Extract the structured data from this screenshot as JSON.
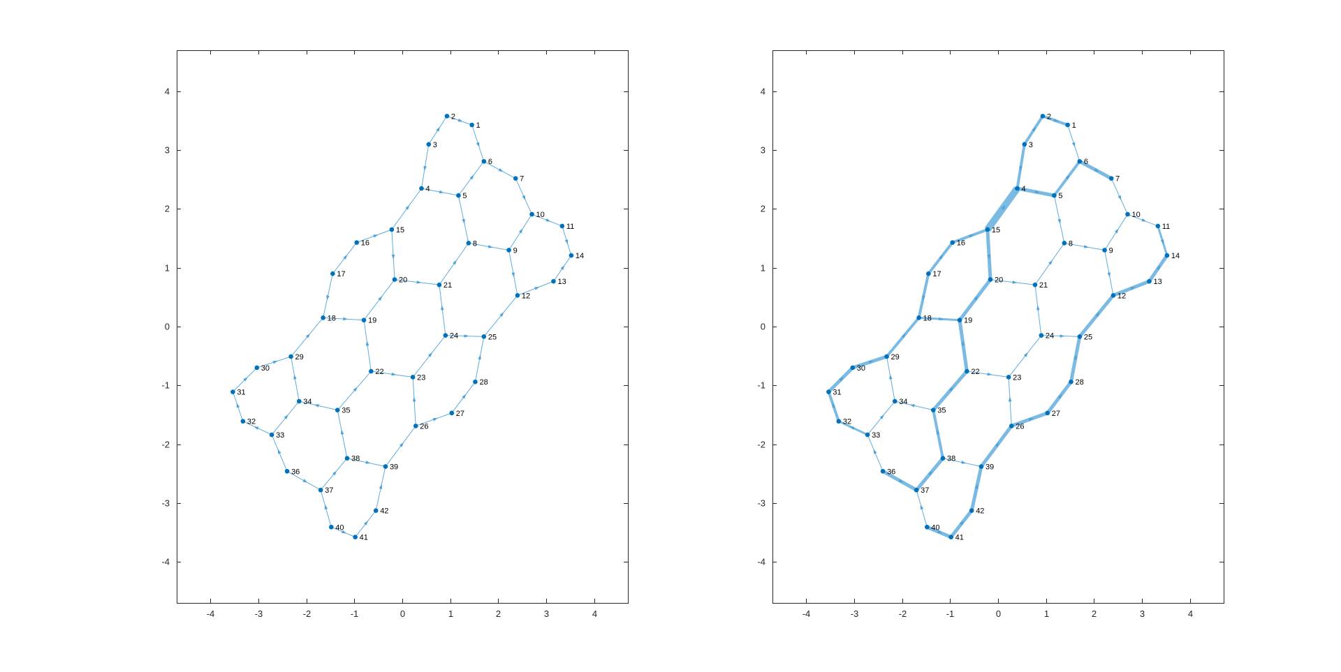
{
  "chart_data": [
    {
      "type": "graph",
      "title": "",
      "xlabel": "",
      "ylabel": "",
      "xlim": [
        -4.7,
        4.7
      ],
      "ylim": [
        -4.7,
        4.7
      ],
      "xticks": [
        -4,
        -3,
        -2,
        -1,
        0,
        1,
        2,
        3,
        4
      ],
      "yticks": [
        -4,
        -3,
        -2,
        -1,
        0,
        1,
        2,
        3,
        4
      ],
      "grid": false,
      "colors": {
        "node": "#0072BD",
        "edge": "#4DA3D9",
        "axis": "#262626"
      },
      "nodes": [
        {
          "id": 1,
          "x": 1.45,
          "y": 3.43
        },
        {
          "id": 2,
          "x": 0.93,
          "y": 3.58
        },
        {
          "id": 3,
          "x": 0.55,
          "y": 3.1
        },
        {
          "id": 4,
          "x": 0.4,
          "y": 2.35
        },
        {
          "id": 5,
          "x": 1.17,
          "y": 2.23
        },
        {
          "id": 6,
          "x": 1.7,
          "y": 2.81
        },
        {
          "id": 7,
          "x": 2.36,
          "y": 2.52
        },
        {
          "id": 8,
          "x": 1.38,
          "y": 1.42
        },
        {
          "id": 9,
          "x": 2.22,
          "y": 1.3
        },
        {
          "id": 10,
          "x": 2.7,
          "y": 1.91
        },
        {
          "id": 11,
          "x": 3.33,
          "y": 1.71
        },
        {
          "id": 12,
          "x": 2.4,
          "y": 0.53
        },
        {
          "id": 13,
          "x": 3.15,
          "y": 0.77
        },
        {
          "id": 14,
          "x": 3.52,
          "y": 1.21
        },
        {
          "id": 15,
          "x": -0.22,
          "y": 1.65
        },
        {
          "id": 16,
          "x": -0.95,
          "y": 1.43
        },
        {
          "id": 17,
          "x": -1.45,
          "y": 0.9
        },
        {
          "id": 18,
          "x": -1.65,
          "y": 0.15
        },
        {
          "id": 19,
          "x": -0.8,
          "y": 0.11
        },
        {
          "id": 20,
          "x": -0.16,
          "y": 0.8
        },
        {
          "id": 21,
          "x": 0.77,
          "y": 0.71
        },
        {
          "id": 22,
          "x": -0.65,
          "y": -0.76
        },
        {
          "id": 23,
          "x": 0.22,
          "y": -0.86
        },
        {
          "id": 24,
          "x": 0.9,
          "y": -0.15
        },
        {
          "id": 25,
          "x": 1.7,
          "y": -0.17
        },
        {
          "id": 26,
          "x": 0.28,
          "y": -1.69
        },
        {
          "id": 27,
          "x": 1.03,
          "y": -1.47
        },
        {
          "id": 28,
          "x": 1.52,
          "y": -0.94
        },
        {
          "id": 29,
          "x": -2.32,
          "y": -0.51
        },
        {
          "id": 30,
          "x": -3.03,
          "y": -0.7
        },
        {
          "id": 31,
          "x": -3.53,
          "y": -1.11
        },
        {
          "id": 32,
          "x": -3.32,
          "y": -1.61
        },
        {
          "id": 33,
          "x": -2.72,
          "y": -1.84
        },
        {
          "id": 34,
          "x": -2.15,
          "y": -1.27
        },
        {
          "id": 35,
          "x": -1.35,
          "y": -1.42
        },
        {
          "id": 36,
          "x": -2.4,
          "y": -2.46
        },
        {
          "id": 37,
          "x": -1.7,
          "y": -2.78
        },
        {
          "id": 38,
          "x": -1.15,
          "y": -2.24
        },
        {
          "id": 39,
          "x": -0.35,
          "y": -2.38
        },
        {
          "id": 40,
          "x": -1.48,
          "y": -3.41
        },
        {
          "id": 41,
          "x": -0.98,
          "y": -3.58
        },
        {
          "id": 42,
          "x": -0.55,
          "y": -3.13
        }
      ],
      "edges": [
        {
          "s": 2,
          "t": 1,
          "w": 1
        },
        {
          "s": 1,
          "t": 6,
          "w": 1
        },
        {
          "s": 3,
          "t": 2,
          "w": 1
        },
        {
          "s": 3,
          "t": 4,
          "w": 1
        },
        {
          "s": 4,
          "t": 5,
          "w": 1
        },
        {
          "s": 5,
          "t": 6,
          "w": 1
        },
        {
          "s": 6,
          "t": 7,
          "w": 1
        },
        {
          "s": 7,
          "t": 10,
          "w": 1
        },
        {
          "s": 5,
          "t": 8,
          "w": 1
        },
        {
          "s": 8,
          "t": 9,
          "w": 1
        },
        {
          "s": 9,
          "t": 10,
          "w": 1
        },
        {
          "s": 10,
          "t": 11,
          "w": 1
        },
        {
          "s": 11,
          "t": 14,
          "w": 1
        },
        {
          "s": 13,
          "t": 14,
          "w": 1
        },
        {
          "s": 12,
          "t": 13,
          "w": 1
        },
        {
          "s": 9,
          "t": 12,
          "w": 1
        },
        {
          "s": 15,
          "t": 4,
          "w": 1
        },
        {
          "s": 16,
          "t": 15,
          "w": 1
        },
        {
          "s": 17,
          "t": 16,
          "w": 1
        },
        {
          "s": 17,
          "t": 18,
          "w": 1
        },
        {
          "s": 18,
          "t": 19,
          "w": 1
        },
        {
          "s": 19,
          "t": 20,
          "w": 1
        },
        {
          "s": 15,
          "t": 20,
          "w": 1
        },
        {
          "s": 20,
          "t": 21,
          "w": 1
        },
        {
          "s": 21,
          "t": 8,
          "w": 1
        },
        {
          "s": 24,
          "t": 21,
          "w": 1
        },
        {
          "s": 24,
          "t": 25,
          "w": 1
        },
        {
          "s": 25,
          "t": 12,
          "w": 1
        },
        {
          "s": 23,
          "t": 24,
          "w": 1
        },
        {
          "s": 22,
          "t": 23,
          "w": 1
        },
        {
          "s": 22,
          "t": 19,
          "w": 1
        },
        {
          "s": 29,
          "t": 18,
          "w": 1
        },
        {
          "s": 30,
          "t": 29,
          "w": 1
        },
        {
          "s": 31,
          "t": 30,
          "w": 1
        },
        {
          "s": 32,
          "t": 31,
          "w": 1
        },
        {
          "s": 33,
          "t": 32,
          "w": 1
        },
        {
          "s": 33,
          "t": 34,
          "w": 1
        },
        {
          "s": 34,
          "t": 29,
          "w": 1
        },
        {
          "s": 35,
          "t": 34,
          "w": 1
        },
        {
          "s": 35,
          "t": 22,
          "w": 1
        },
        {
          "s": 26,
          "t": 23,
          "w": 1
        },
        {
          "s": 26,
          "t": 27,
          "w": 1
        },
        {
          "s": 27,
          "t": 28,
          "w": 1
        },
        {
          "s": 28,
          "t": 25,
          "w": 1
        },
        {
          "s": 39,
          "t": 26,
          "w": 1
        },
        {
          "s": 38,
          "t": 39,
          "w": 1
        },
        {
          "s": 38,
          "t": 35,
          "w": 1
        },
        {
          "s": 37,
          "t": 38,
          "w": 1
        },
        {
          "s": 36,
          "t": 37,
          "w": 1
        },
        {
          "s": 36,
          "t": 33,
          "w": 1
        },
        {
          "s": 40,
          "t": 37,
          "w": 1
        },
        {
          "s": 40,
          "t": 41,
          "w": 1
        },
        {
          "s": 41,
          "t": 42,
          "w": 1
        },
        {
          "s": 42,
          "t": 39,
          "w": 1
        }
      ]
    },
    {
      "type": "graph",
      "title": "",
      "xlabel": "",
      "ylabel": "",
      "xlim": [
        -4.7,
        4.7
      ],
      "ylim": [
        -4.7,
        4.7
      ],
      "xticks": [
        -4,
        -3,
        -2,
        -1,
        0,
        1,
        2,
        3,
        4
      ],
      "yticks": [
        -4,
        -3,
        -2,
        -1,
        0,
        1,
        2,
        3,
        4
      ],
      "grid": false,
      "colors": {
        "node": "#0072BD",
        "edge": "#4DA3D9",
        "axis": "#262626"
      },
      "nodes": [
        {
          "id": 1,
          "x": 1.45,
          "y": 3.43
        },
        {
          "id": 2,
          "x": 0.93,
          "y": 3.58
        },
        {
          "id": 3,
          "x": 0.55,
          "y": 3.1
        },
        {
          "id": 4,
          "x": 0.4,
          "y": 2.35
        },
        {
          "id": 5,
          "x": 1.17,
          "y": 2.23
        },
        {
          "id": 6,
          "x": 1.7,
          "y": 2.81
        },
        {
          "id": 7,
          "x": 2.36,
          "y": 2.52
        },
        {
          "id": 8,
          "x": 1.38,
          "y": 1.42
        },
        {
          "id": 9,
          "x": 2.22,
          "y": 1.3
        },
        {
          "id": 10,
          "x": 2.7,
          "y": 1.91
        },
        {
          "id": 11,
          "x": 3.33,
          "y": 1.71
        },
        {
          "id": 12,
          "x": 2.4,
          "y": 0.53
        },
        {
          "id": 13,
          "x": 3.15,
          "y": 0.77
        },
        {
          "id": 14,
          "x": 3.52,
          "y": 1.21
        },
        {
          "id": 15,
          "x": -0.22,
          "y": 1.65
        },
        {
          "id": 16,
          "x": -0.95,
          "y": 1.43
        },
        {
          "id": 17,
          "x": -1.45,
          "y": 0.9
        },
        {
          "id": 18,
          "x": -1.65,
          "y": 0.15
        },
        {
          "id": 19,
          "x": -0.8,
          "y": 0.11
        },
        {
          "id": 20,
          "x": -0.16,
          "y": 0.8
        },
        {
          "id": 21,
          "x": 0.77,
          "y": 0.71
        },
        {
          "id": 22,
          "x": -0.65,
          "y": -0.76
        },
        {
          "id": 23,
          "x": 0.22,
          "y": -0.86
        },
        {
          "id": 24,
          "x": 0.9,
          "y": -0.15
        },
        {
          "id": 25,
          "x": 1.7,
          "y": -0.17
        },
        {
          "id": 26,
          "x": 0.28,
          "y": -1.69
        },
        {
          "id": 27,
          "x": 1.03,
          "y": -1.47
        },
        {
          "id": 28,
          "x": 1.52,
          "y": -0.94
        },
        {
          "id": 29,
          "x": -2.32,
          "y": -0.51
        },
        {
          "id": 30,
          "x": -3.03,
          "y": -0.7
        },
        {
          "id": 31,
          "x": -3.53,
          "y": -1.11
        },
        {
          "id": 32,
          "x": -3.32,
          "y": -1.61
        },
        {
          "id": 33,
          "x": -2.72,
          "y": -1.84
        },
        {
          "id": 34,
          "x": -2.15,
          "y": -1.27
        },
        {
          "id": 35,
          "x": -1.35,
          "y": -1.42
        },
        {
          "id": 36,
          "x": -2.4,
          "y": -2.46
        },
        {
          "id": 37,
          "x": -1.7,
          "y": -2.78
        },
        {
          "id": 38,
          "x": -1.15,
          "y": -2.24
        },
        {
          "id": 39,
          "x": -0.35,
          "y": -2.38
        },
        {
          "id": 40,
          "x": -1.48,
          "y": -3.41
        },
        {
          "id": 41,
          "x": -0.98,
          "y": -3.58
        },
        {
          "id": 42,
          "x": -0.55,
          "y": -3.13
        }
      ],
      "edges": [
        {
          "s": 2,
          "t": 1,
          "w": 4
        },
        {
          "s": 1,
          "t": 6,
          "w": 1
        },
        {
          "s": 3,
          "t": 2,
          "w": 4
        },
        {
          "s": 3,
          "t": 4,
          "w": 4
        },
        {
          "s": 4,
          "t": 5,
          "w": 5
        },
        {
          "s": 5,
          "t": 6,
          "w": 4
        },
        {
          "s": 6,
          "t": 7,
          "w": 5
        },
        {
          "s": 7,
          "t": 10,
          "w": 1
        },
        {
          "s": 5,
          "t": 8,
          "w": 1
        },
        {
          "s": 8,
          "t": 9,
          "w": 1
        },
        {
          "s": 9,
          "t": 10,
          "w": 1
        },
        {
          "s": 10,
          "t": 11,
          "w": 1
        },
        {
          "s": 11,
          "t": 14,
          "w": 3
        },
        {
          "s": 13,
          "t": 14,
          "w": 5
        },
        {
          "s": 12,
          "t": 13,
          "w": 5
        },
        {
          "s": 9,
          "t": 12,
          "w": 1
        },
        {
          "s": 15,
          "t": 4,
          "w": 10
        },
        {
          "s": 16,
          "t": 15,
          "w": 4
        },
        {
          "s": 17,
          "t": 16,
          "w": 4
        },
        {
          "s": 17,
          "t": 18,
          "w": 4
        },
        {
          "s": 18,
          "t": 19,
          "w": 3
        },
        {
          "s": 19,
          "t": 20,
          "w": 5
        },
        {
          "s": 15,
          "t": 20,
          "w": 5
        },
        {
          "s": 20,
          "t": 21,
          "w": 1
        },
        {
          "s": 21,
          "t": 8,
          "w": 1
        },
        {
          "s": 24,
          "t": 21,
          "w": 1
        },
        {
          "s": 24,
          "t": 25,
          "w": 1
        },
        {
          "s": 25,
          "t": 12,
          "w": 5
        },
        {
          "s": 23,
          "t": 24,
          "w": 1
        },
        {
          "s": 22,
          "t": 23,
          "w": 1
        },
        {
          "s": 22,
          "t": 19,
          "w": 5
        },
        {
          "s": 29,
          "t": 18,
          "w": 4
        },
        {
          "s": 30,
          "t": 29,
          "w": 5
        },
        {
          "s": 31,
          "t": 30,
          "w": 5
        },
        {
          "s": 32,
          "t": 31,
          "w": 4
        },
        {
          "s": 33,
          "t": 32,
          "w": 3
        },
        {
          "s": 33,
          "t": 34,
          "w": 1
        },
        {
          "s": 34,
          "t": 29,
          "w": 1
        },
        {
          "s": 35,
          "t": 34,
          "w": 1
        },
        {
          "s": 35,
          "t": 22,
          "w": 5
        },
        {
          "s": 26,
          "t": 23,
          "w": 1
        },
        {
          "s": 26,
          "t": 27,
          "w": 5
        },
        {
          "s": 27,
          "t": 28,
          "w": 5
        },
        {
          "s": 28,
          "t": 25,
          "w": 5
        },
        {
          "s": 39,
          "t": 26,
          "w": 5
        },
        {
          "s": 38,
          "t": 39,
          "w": 1
        },
        {
          "s": 38,
          "t": 35,
          "w": 4
        },
        {
          "s": 37,
          "t": 38,
          "w": 5
        },
        {
          "s": 36,
          "t": 37,
          "w": 5
        },
        {
          "s": 36,
          "t": 33,
          "w": 1
        },
        {
          "s": 40,
          "t": 37,
          "w": 1
        },
        {
          "s": 40,
          "t": 41,
          "w": 5
        },
        {
          "s": 41,
          "t": 42,
          "w": 5
        },
        {
          "s": 42,
          "t": 39,
          "w": 5
        }
      ]
    }
  ]
}
